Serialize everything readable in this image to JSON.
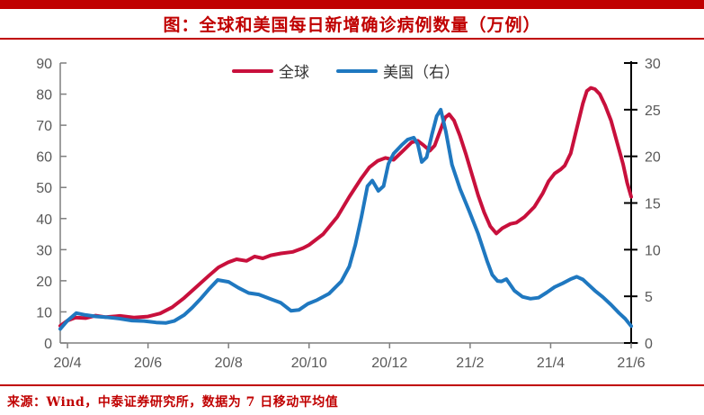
{
  "page": {
    "title": "图：全球和美国每日新增确诊病例数量（万例）",
    "source_note": "来源：Wind，中泰证券研究所，数据为 7 日移动平均值"
  },
  "chart_data": {
    "type": "line",
    "title": "图：全球和美国每日新增确诊病例数量（万例）",
    "x_unit": "months since 2020-04 (0 = 20/4, 14 = 21/6)",
    "x_axis": {
      "tick_labels": [
        "20/4",
        "20/6",
        "20/8",
        "20/10",
        "20/12",
        "21/2",
        "21/4",
        "21/6"
      ],
      "tick_months": [
        0,
        2,
        4,
        6,
        8,
        10,
        12,
        14
      ]
    },
    "y_axis_left": {
      "min": 0,
      "max": 90,
      "step": 10,
      "ticks": [
        0,
        10,
        20,
        30,
        40,
        50,
        60,
        70,
        80,
        90
      ]
    },
    "y_axis_right": {
      "min": 0,
      "max": 30,
      "step": 5,
      "ticks": [
        0,
        5,
        10,
        15,
        20,
        25,
        30
      ]
    },
    "legend": [
      {
        "label": "全球",
        "color": "#c8103c",
        "axis": "left"
      },
      {
        "label": "美国（右）",
        "color": "#1f78c0",
        "axis": "right"
      }
    ],
    "series": [
      {
        "name": "全球",
        "axis": "left",
        "color": "#c8103c",
        "points": [
          [
            -0.18,
            5.5
          ],
          [
            0,
            7.2
          ],
          [
            0.2,
            8.2
          ],
          [
            0.45,
            8.0
          ],
          [
            0.7,
            8.8
          ],
          [
            0.95,
            8.3
          ],
          [
            1.3,
            8.7
          ],
          [
            1.65,
            8.2
          ],
          [
            2.0,
            8.5
          ],
          [
            2.3,
            9.5
          ],
          [
            2.6,
            11.5
          ],
          [
            2.9,
            14.5
          ],
          [
            3.2,
            18.0
          ],
          [
            3.5,
            21.5
          ],
          [
            3.75,
            24.3
          ],
          [
            4.0,
            26.0
          ],
          [
            4.2,
            26.9
          ],
          [
            4.45,
            26.4
          ],
          [
            4.65,
            27.8
          ],
          [
            4.85,
            27.2
          ],
          [
            5.05,
            28.2
          ],
          [
            5.3,
            28.8
          ],
          [
            5.6,
            29.3
          ],
          [
            5.85,
            30.5
          ],
          [
            6.0,
            31.5
          ],
          [
            6.35,
            35.0
          ],
          [
            6.7,
            40.5
          ],
          [
            7.0,
            47.0
          ],
          [
            7.3,
            53.0
          ],
          [
            7.5,
            56.5
          ],
          [
            7.7,
            58.5
          ],
          [
            7.9,
            59.5
          ],
          [
            8.1,
            58.9
          ],
          [
            8.35,
            62.0
          ],
          [
            8.55,
            64.5
          ],
          [
            8.7,
            65.0
          ],
          [
            8.85,
            63.5
          ],
          [
            9.0,
            61.8
          ],
          [
            9.12,
            63.5
          ],
          [
            9.25,
            68.0
          ],
          [
            9.38,
            72.5
          ],
          [
            9.48,
            73.5
          ],
          [
            9.6,
            71.5
          ],
          [
            9.75,
            66.5
          ],
          [
            9.9,
            60.5
          ],
          [
            10.05,
            54.0
          ],
          [
            10.2,
            47.5
          ],
          [
            10.35,
            42.0
          ],
          [
            10.5,
            37.5
          ],
          [
            10.65,
            35.2
          ],
          [
            10.8,
            36.9
          ],
          [
            11.0,
            38.3
          ],
          [
            11.15,
            38.7
          ],
          [
            11.35,
            40.5
          ],
          [
            11.6,
            43.8
          ],
          [
            11.8,
            48.0
          ],
          [
            11.95,
            52.0
          ],
          [
            12.1,
            54.5
          ],
          [
            12.25,
            55.8
          ],
          [
            12.35,
            57.0
          ],
          [
            12.5,
            61.0
          ],
          [
            12.65,
            69.0
          ],
          [
            12.8,
            77.0
          ],
          [
            12.9,
            81.0
          ],
          [
            13.0,
            82.0
          ],
          [
            13.1,
            81.6
          ],
          [
            13.22,
            80.0
          ],
          [
            13.35,
            76.5
          ],
          [
            13.5,
            71.5
          ],
          [
            13.65,
            64.5
          ],
          [
            13.8,
            57.5
          ],
          [
            13.9,
            51.5
          ],
          [
            14.0,
            47.0
          ]
        ]
      },
      {
        "name": "美国（右）",
        "axis": "right",
        "color": "#1f78c0",
        "points": [
          [
            -0.18,
            1.5
          ],
          [
            0,
            2.4
          ],
          [
            0.22,
            3.2
          ],
          [
            0.45,
            3.0
          ],
          [
            0.7,
            2.85
          ],
          [
            1.0,
            2.75
          ],
          [
            1.3,
            2.6
          ],
          [
            1.6,
            2.4
          ],
          [
            1.9,
            2.35
          ],
          [
            2.2,
            2.2
          ],
          [
            2.45,
            2.15
          ],
          [
            2.65,
            2.35
          ],
          [
            2.9,
            3.0
          ],
          [
            3.1,
            3.8
          ],
          [
            3.3,
            4.7
          ],
          [
            3.5,
            5.7
          ],
          [
            3.73,
            6.75
          ],
          [
            4.0,
            6.55
          ],
          [
            4.25,
            5.9
          ],
          [
            4.5,
            5.35
          ],
          [
            4.75,
            5.2
          ],
          [
            5.05,
            4.7
          ],
          [
            5.3,
            4.3
          ],
          [
            5.55,
            3.45
          ],
          [
            5.75,
            3.55
          ],
          [
            5.97,
            4.2
          ],
          [
            6.2,
            4.6
          ],
          [
            6.5,
            5.3
          ],
          [
            6.8,
            6.6
          ],
          [
            7.0,
            8.2
          ],
          [
            7.15,
            10.5
          ],
          [
            7.3,
            13.5
          ],
          [
            7.45,
            16.8
          ],
          [
            7.57,
            17.4
          ],
          [
            7.72,
            16.3
          ],
          [
            7.85,
            16.8
          ],
          [
            7.97,
            19.2
          ],
          [
            8.1,
            20.3
          ],
          [
            8.3,
            21.2
          ],
          [
            8.45,
            21.8
          ],
          [
            8.6,
            22.0
          ],
          [
            8.7,
            21.3
          ],
          [
            8.8,
            19.4
          ],
          [
            8.92,
            19.9
          ],
          [
            9.05,
            22.3
          ],
          [
            9.17,
            24.3
          ],
          [
            9.27,
            25.0
          ],
          [
            9.4,
            22.6
          ],
          [
            9.55,
            19.1
          ],
          [
            9.75,
            16.5
          ],
          [
            9.98,
            14.1
          ],
          [
            10.2,
            11.7
          ],
          [
            10.42,
            8.8
          ],
          [
            10.55,
            7.3
          ],
          [
            10.68,
            6.65
          ],
          [
            10.78,
            6.6
          ],
          [
            10.9,
            6.85
          ],
          [
            11.1,
            5.6
          ],
          [
            11.3,
            4.95
          ],
          [
            11.5,
            4.75
          ],
          [
            11.7,
            4.85
          ],
          [
            11.9,
            5.4
          ],
          [
            12.1,
            6.0
          ],
          [
            12.3,
            6.4
          ],
          [
            12.5,
            6.85
          ],
          [
            12.65,
            7.1
          ],
          [
            12.8,
            6.8
          ],
          [
            12.95,
            6.2
          ],
          [
            13.1,
            5.6
          ],
          [
            13.3,
            4.9
          ],
          [
            13.5,
            4.1
          ],
          [
            13.7,
            3.2
          ],
          [
            13.85,
            2.6
          ],
          [
            14.0,
            1.8
          ]
        ]
      }
    ],
    "layout": {
      "grid": false,
      "legend_position": "top-center"
    },
    "colors": {
      "accent_red": "#c00000",
      "global_line": "#c8103c",
      "us_line": "#1f78c0",
      "axis_text": "#595959",
      "axis_line_gray": "#7f7f7f",
      "right_axis_line": "#000000"
    }
  }
}
